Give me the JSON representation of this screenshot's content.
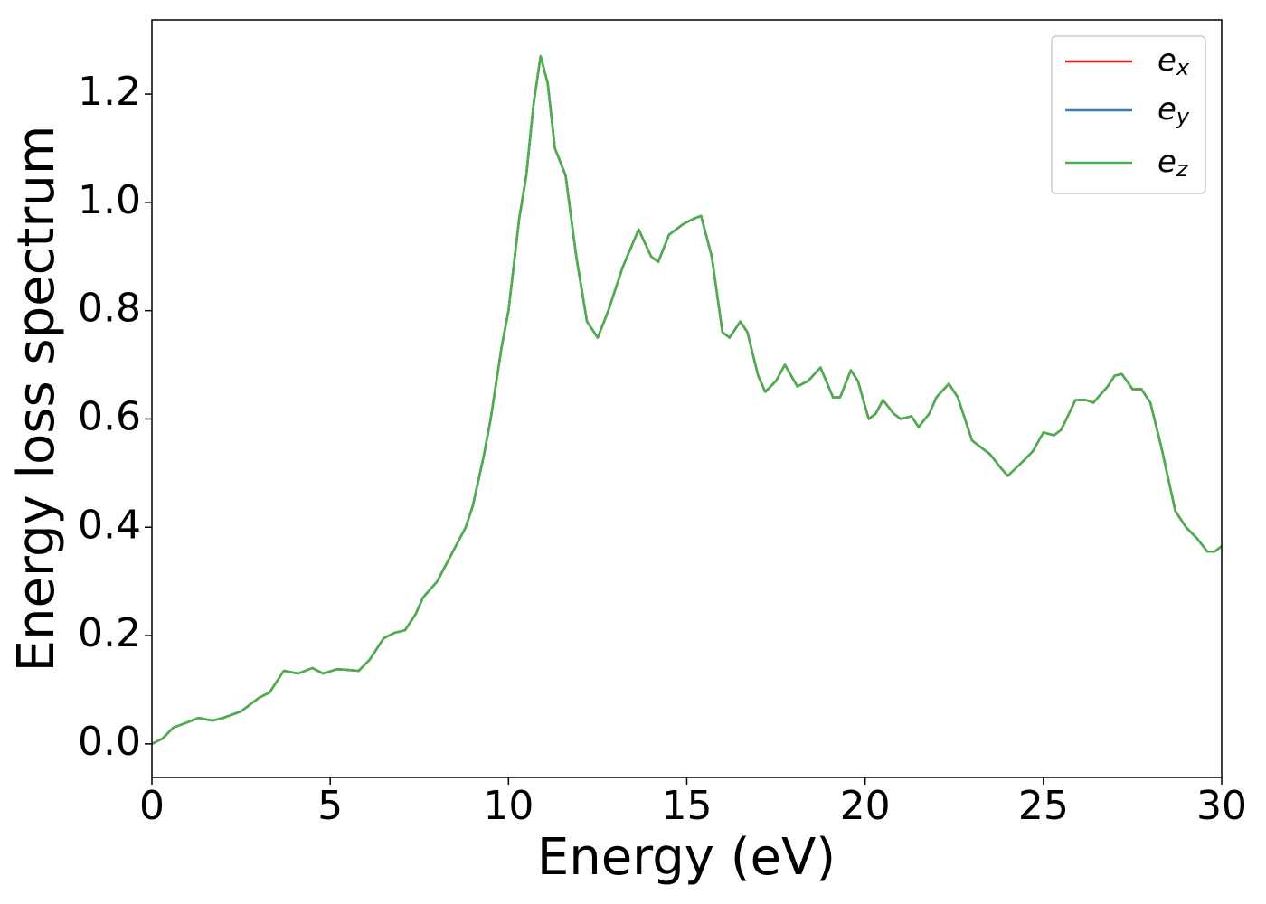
{
  "chart_data": {
    "type": "line",
    "xlabel": "Energy (eV)",
    "ylabel": "Energy loss spectrum",
    "xlim": [
      0,
      30
    ],
    "ylim": [
      -0.062,
      1.337
    ],
    "xticks": [
      0,
      5,
      10,
      15,
      20,
      25,
      30
    ],
    "yticks": [
      {
        "value": 0,
        "label": "0.0"
      },
      0.2,
      0.4,
      0.6,
      0.8,
      {
        "value": 1,
        "label": "1.0"
      },
      1.2
    ],
    "legend": "upper right",
    "grid": false,
    "x": [
      0,
      0.3,
      0.6,
      1.0,
      1.3,
      1.7,
      2.0,
      2.5,
      3.0,
      3.3,
      3.7,
      4.1,
      4.5,
      4.8,
      5.2,
      5.8,
      6.1,
      6.5,
      6.8,
      7.1,
      7.4,
      7.6,
      8.0,
      8.4,
      8.8,
      9.0,
      9.3,
      9.5,
      9.8,
      10.0,
      10.3,
      10.5,
      10.7,
      10.9,
      11.1,
      11.3,
      11.6,
      11.9,
      12.2,
      12.5,
      12.8,
      13.2,
      13.65,
      14.0,
      14.2,
      14.5,
      14.9,
      15.2,
      15.4,
      15.7,
      16.0,
      16.2,
      16.5,
      16.7,
      17.0,
      17.2,
      17.5,
      17.75,
      18.1,
      18.4,
      18.75,
      19.1,
      19.3,
      19.6,
      19.8,
      20.1,
      20.3,
      20.5,
      20.8,
      21.0,
      21.3,
      21.5,
      21.8,
      22.0,
      22.35,
      22.6,
      23.0,
      23.5,
      23.8,
      24.0,
      24.4,
      24.7,
      25.0,
      25.3,
      25.5,
      25.9,
      26.2,
      26.4,
      26.8,
      27.0,
      27.2,
      27.5,
      27.75,
      28.0,
      28.3,
      28.7,
      29.0,
      29.3,
      29.6,
      29.8,
      30.0
    ],
    "series": [
      {
        "name": "ex",
        "color": "#e41a1c",
        "values": [
          0.0,
          0.01,
          0.03,
          0.04,
          0.048,
          0.043,
          0.048,
          0.06,
          0.085,
          0.095,
          0.135,
          0.13,
          0.14,
          0.13,
          0.138,
          0.135,
          0.155,
          0.195,
          0.205,
          0.21,
          0.24,
          0.27,
          0.3,
          0.35,
          0.4,
          0.44,
          0.53,
          0.6,
          0.73,
          0.8,
          0.97,
          1.05,
          1.18,
          1.27,
          1.22,
          1.1,
          1.05,
          0.9,
          0.78,
          0.75,
          0.8,
          0.88,
          0.95,
          0.9,
          0.89,
          0.94,
          0.96,
          0.97,
          0.975,
          0.9,
          0.76,
          0.75,
          0.78,
          0.76,
          0.68,
          0.65,
          0.67,
          0.7,
          0.66,
          0.67,
          0.695,
          0.64,
          0.64,
          0.69,
          0.67,
          0.6,
          0.61,
          0.635,
          0.61,
          0.6,
          0.605,
          0.585,
          0.61,
          0.64,
          0.665,
          0.64,
          0.56,
          0.535,
          0.51,
          0.495,
          0.52,
          0.54,
          0.575,
          0.57,
          0.58,
          0.635,
          0.635,
          0.63,
          0.66,
          0.68,
          0.683,
          0.655,
          0.655,
          0.63,
          0.55,
          0.43,
          0.4,
          0.38,
          0.355,
          0.355,
          0.365
        ]
      },
      {
        "name": "ey",
        "color": "#377eb8",
        "values": [
          0.0,
          0.01,
          0.03,
          0.04,
          0.048,
          0.043,
          0.048,
          0.06,
          0.085,
          0.095,
          0.135,
          0.13,
          0.14,
          0.13,
          0.138,
          0.135,
          0.155,
          0.195,
          0.205,
          0.21,
          0.24,
          0.27,
          0.3,
          0.35,
          0.4,
          0.44,
          0.53,
          0.6,
          0.73,
          0.8,
          0.97,
          1.05,
          1.18,
          1.27,
          1.22,
          1.1,
          1.05,
          0.9,
          0.78,
          0.75,
          0.8,
          0.88,
          0.95,
          0.9,
          0.89,
          0.94,
          0.96,
          0.97,
          0.975,
          0.9,
          0.76,
          0.75,
          0.78,
          0.76,
          0.68,
          0.65,
          0.67,
          0.7,
          0.66,
          0.67,
          0.695,
          0.64,
          0.64,
          0.69,
          0.67,
          0.6,
          0.61,
          0.635,
          0.61,
          0.6,
          0.605,
          0.585,
          0.61,
          0.64,
          0.665,
          0.64,
          0.56,
          0.535,
          0.51,
          0.495,
          0.52,
          0.54,
          0.575,
          0.57,
          0.58,
          0.635,
          0.635,
          0.63,
          0.66,
          0.68,
          0.683,
          0.655,
          0.655,
          0.63,
          0.55,
          0.43,
          0.4,
          0.38,
          0.355,
          0.355,
          0.365
        ]
      },
      {
        "name": "ez",
        "color": "#4daf4a",
        "values": [
          0.0,
          0.01,
          0.03,
          0.04,
          0.048,
          0.043,
          0.048,
          0.06,
          0.085,
          0.095,
          0.135,
          0.13,
          0.14,
          0.13,
          0.138,
          0.135,
          0.155,
          0.195,
          0.205,
          0.21,
          0.24,
          0.27,
          0.3,
          0.35,
          0.4,
          0.44,
          0.53,
          0.6,
          0.73,
          0.8,
          0.97,
          1.05,
          1.18,
          1.27,
          1.22,
          1.1,
          1.05,
          0.9,
          0.78,
          0.75,
          0.8,
          0.88,
          0.95,
          0.9,
          0.89,
          0.94,
          0.96,
          0.97,
          0.975,
          0.9,
          0.76,
          0.75,
          0.78,
          0.76,
          0.68,
          0.65,
          0.67,
          0.7,
          0.66,
          0.67,
          0.695,
          0.64,
          0.64,
          0.69,
          0.67,
          0.6,
          0.61,
          0.635,
          0.61,
          0.6,
          0.605,
          0.585,
          0.61,
          0.64,
          0.665,
          0.64,
          0.56,
          0.535,
          0.51,
          0.495,
          0.52,
          0.54,
          0.575,
          0.57,
          0.58,
          0.635,
          0.635,
          0.63,
          0.66,
          0.68,
          0.683,
          0.655,
          0.655,
          0.63,
          0.55,
          0.43,
          0.4,
          0.38,
          0.355,
          0.355,
          0.365
        ]
      }
    ]
  }
}
